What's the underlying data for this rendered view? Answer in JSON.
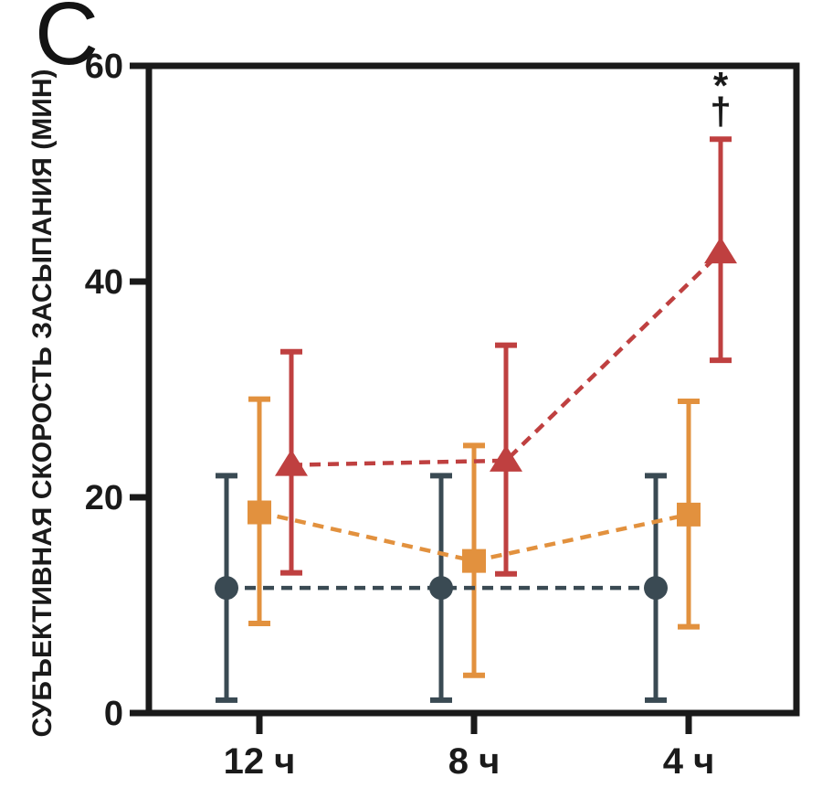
{
  "panel_label": "C",
  "chart_data": {
    "type": "line",
    "title": "",
    "xlabel": "",
    "ylabel": "СУБЪЕКТИВНАЯ СКОРОСТЬ ЗАСЫПАНИЯ (МИН)",
    "categories": [
      "12 ч",
      "8 ч",
      "4 ч"
    ],
    "ylim": [
      0,
      60
    ],
    "yticks": [
      0,
      20,
      40,
      60
    ],
    "grid": false,
    "legend_position": "none",
    "line_style": "dashed",
    "axis_color": "#1a1a1a",
    "background_color": "#ffffff",
    "series": [
      {
        "name": "series-circles",
        "marker": "circle",
        "color": "#3a4a53",
        "values": [
          11.6,
          11.6,
          11.6
        ],
        "err_lo": [
          1.2,
          1.2,
          1.2
        ],
        "err_hi": [
          22.0,
          22.0,
          22.0
        ]
      },
      {
        "name": "series-squares",
        "marker": "square",
        "color": "#e2913e",
        "values": [
          18.6,
          14.1,
          18.4
        ],
        "err_lo": [
          8.3,
          3.5,
          8.0
        ],
        "err_hi": [
          29.1,
          24.8,
          28.9
        ]
      },
      {
        "name": "series-triangles",
        "marker": "triangle",
        "color": "#bf4040",
        "values": [
          23.0,
          23.4,
          42.7
        ],
        "err_lo": [
          13.0,
          12.9,
          32.7
        ],
        "err_hi": [
          33.5,
          34.1,
          53.2
        ]
      }
    ],
    "annotations": [
      {
        "text": "*",
        "series_index": 2,
        "point_index": 2
      },
      {
        "text": "†",
        "series_index": 2,
        "point_index": 2
      }
    ]
  }
}
